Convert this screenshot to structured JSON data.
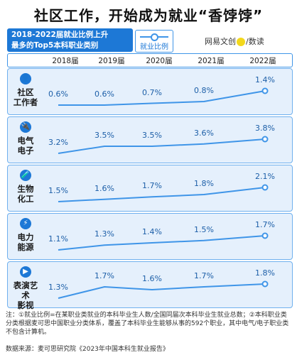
{
  "title": "社区工作，开始成为就业“香饽饽”",
  "header": {
    "line1": "2018-2022届就业比例上升",
    "line2": "最多的Top5本科职业类别"
  },
  "legend": {
    "label": "就业比例",
    "color": "#3f95e8"
  },
  "brand": {
    "name": "网易文创",
    "separator": "/",
    "suffix": "数读"
  },
  "years": [
    "2018届",
    "2019届",
    "2020届",
    "2021届",
    "2022届"
  ],
  "chart_data": {
    "type": "line",
    "categories": [
      "2018届",
      "2019届",
      "2020届",
      "2021届",
      "2022届"
    ],
    "series": [
      {
        "name": "社区工作者",
        "icon": "person-icon",
        "values": [
          0.6,
          0.6,
          0.7,
          0.8,
          1.4
        ],
        "labels": [
          "0.6%",
          "0.6%",
          "0.7%",
          "0.8%",
          "1.4%"
        ]
      },
      {
        "name": "电气电子",
        "icon": "plug-icon",
        "values": [
          3.2,
          3.5,
          3.5,
          3.6,
          3.8
        ],
        "labels": [
          "3.2%",
          "3.5%",
          "3.5%",
          "3.6%",
          "3.8%"
        ]
      },
      {
        "name": "生物化工",
        "icon": "test-tube-icon",
        "values": [
          1.5,
          1.6,
          1.7,
          1.8,
          2.1
        ],
        "labels": [
          "1.5%",
          "1.6%",
          "1.7%",
          "1.8%",
          "2.1%"
        ]
      },
      {
        "name": "电力能源",
        "icon": "lightning-icon",
        "values": [
          1.1,
          1.3,
          1.4,
          1.5,
          1.7
        ],
        "labels": [
          "1.1%",
          "1.3%",
          "1.4%",
          "1.5%",
          "1.7%"
        ]
      },
      {
        "name": "表演艺术影视",
        "icon": "play-icon",
        "values": [
          1.3,
          1.7,
          1.6,
          1.7,
          1.8
        ],
        "labels": [
          "1.3%",
          "1.7%",
          "1.6%",
          "1.7%",
          "1.8%"
        ]
      }
    ],
    "line_color": "#3f95e8",
    "card_color": "#e5f0fc"
  },
  "rows_display": [
    {
      "label_line1": "社区",
      "label_line2": "工作者",
      "icon_glyph": "👤"
    },
    {
      "label_line1": "电气",
      "label_line2": "电子",
      "icon_glyph": "🔌"
    },
    {
      "label_line1": "生物",
      "label_line2": "化工",
      "icon_glyph": "🧪"
    },
    {
      "label_line1": "电力",
      "label_line2": "能源",
      "icon_glyph": "⚡"
    },
    {
      "label_line1": "表演艺术",
      "label_line2": "影视",
      "icon_glyph": "▶"
    }
  ],
  "notes": "注：①就业比例=在某职业类就业的本科毕业生人数/全国同届次本科毕业生就业总数；②本科职业类分类根据麦可思中国职业分类体系，覆盖了本科毕业生能够从事的592个职业，其中电气/电子职业类不包含计算机。",
  "source": "数据来源：麦可思研究院《2023年中国本科生就业报告》"
}
